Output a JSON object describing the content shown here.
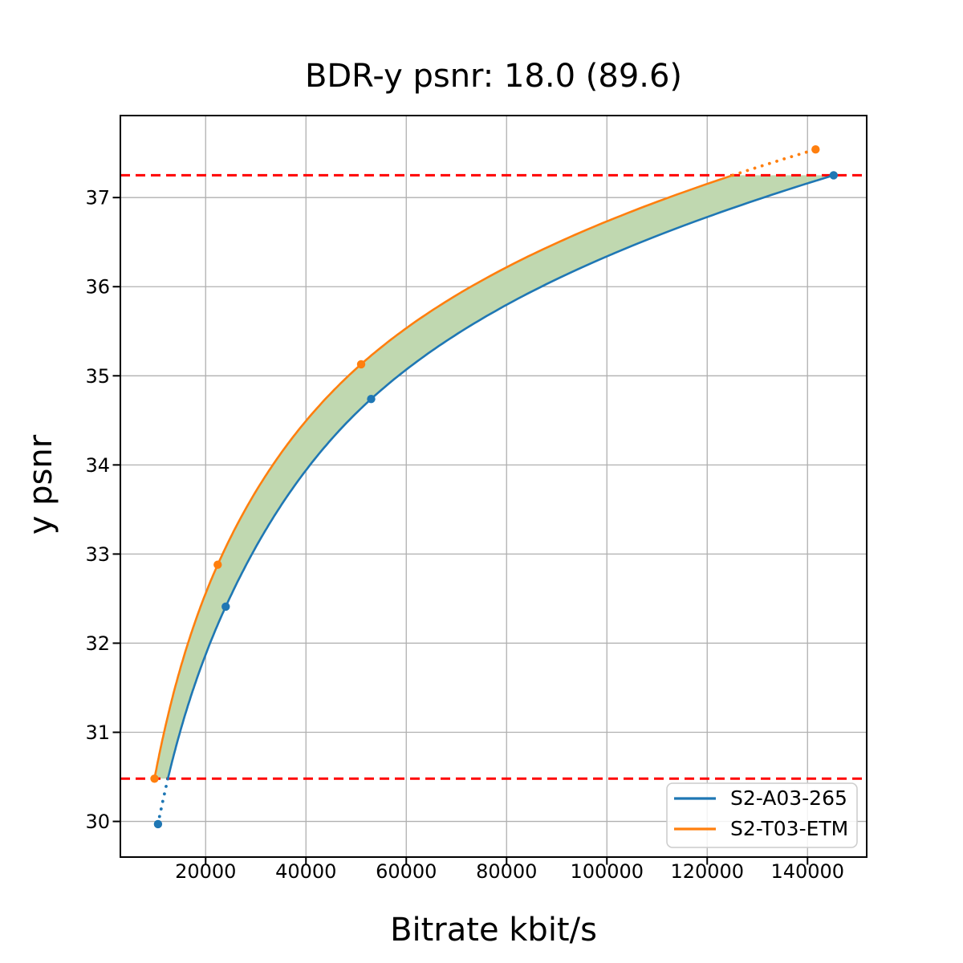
{
  "title": "BDR-y psnr: 18.0 (89.6)",
  "chart_data": {
    "type": "line",
    "title": "BDR-y psnr: 18.0 (89.6)",
    "xlabel": "Bitrate kbit/s",
    "ylabel": "y psnr",
    "xlim": [
      3000,
      151800
    ],
    "ylim": [
      29.6,
      37.92
    ],
    "x_ticks": [
      20000,
      40000,
      60000,
      80000,
      100000,
      120000,
      140000
    ],
    "y_ticks": [
      30,
      31,
      32,
      33,
      34,
      35,
      36,
      37
    ],
    "grid": true,
    "grid_color": "#b0b0b0",
    "legend_position": "lower right",
    "series": [
      {
        "name": "S2-A03-265",
        "color": "#1f77b4",
        "points": [
          [
            10500,
            29.97
          ],
          [
            24000,
            32.41
          ],
          [
            53000,
            34.74
          ],
          [
            145200,
            37.25
          ]
        ]
      },
      {
        "name": "S2-T03-ETM",
        "color": "#ff7f0e",
        "points": [
          [
            9800,
            30.48
          ],
          [
            22400,
            32.88
          ],
          [
            51000,
            35.13
          ],
          [
            141600,
            37.54
          ]
        ]
      }
    ],
    "overlap_band": {
      "psnr_low": 30.48,
      "psnr_high": 37.25,
      "line_color": "#ff0000",
      "line_style": "dashed",
      "fill_color": "#c0d8b0"
    }
  }
}
